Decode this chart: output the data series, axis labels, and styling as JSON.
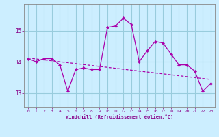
{
  "x": [
    0,
    1,
    2,
    3,
    4,
    5,
    6,
    7,
    8,
    9,
    10,
    11,
    12,
    13,
    14,
    15,
    16,
    17,
    18,
    19,
    20,
    21,
    22,
    23
  ],
  "y_main": [
    14.1,
    14.0,
    14.1,
    14.1,
    13.9,
    13.05,
    13.75,
    13.8,
    13.75,
    13.75,
    15.1,
    15.15,
    15.4,
    15.2,
    14.0,
    14.35,
    14.65,
    14.6,
    14.25,
    13.9,
    13.9,
    13.7,
    13.05,
    13.3
  ],
  "y_trend": [
    14.12,
    14.09,
    14.06,
    14.03,
    14.0,
    13.97,
    13.94,
    13.91,
    13.88,
    13.85,
    13.82,
    13.79,
    13.76,
    13.73,
    13.7,
    13.67,
    13.64,
    13.61,
    13.58,
    13.55,
    13.52,
    13.49,
    13.46,
    13.43
  ],
  "line_color": "#aa00aa",
  "bg_color": "#cceeff",
  "grid_color": "#99ccdd",
  "text_color": "#880088",
  "xlabel": "Windchill (Refroidissement éolien,°C)",
  "yticks": [
    13,
    14,
    15
  ],
  "xticks": [
    0,
    1,
    2,
    3,
    4,
    5,
    6,
    7,
    8,
    9,
    10,
    11,
    12,
    13,
    14,
    15,
    16,
    17,
    18,
    19,
    20,
    21,
    22,
    23
  ],
  "ylim": [
    12.55,
    15.85
  ],
  "xlim": [
    -0.5,
    23.5
  ]
}
